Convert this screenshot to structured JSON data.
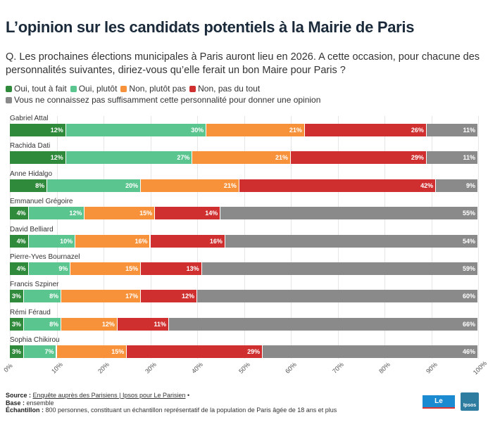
{
  "chart_data": {
    "type": "bar",
    "orientation": "horizontal-stacked",
    "title": "L’opinion sur les candidats potentiels à la Mairie de Paris",
    "subtitle": "Q. Les prochaines élections municipales à Paris auront lieu en 2026. A cette occasion, pour chacune des personnalités suivantes, diriez-vous qu’elle ferait un bon Maire pour Paris ?",
    "categories": [
      "Gabriel Attal",
      "Rachida Dati",
      "Anne Hidalgo",
      "Emmanuel Grégoire",
      "David Belliard",
      "Pierre-Yves Bournazel",
      "Francis Szpiner",
      "Rémi Féraud",
      "Sophia Chikirou"
    ],
    "series": [
      {
        "name": "Oui, tout à fait",
        "color": "#2f8a3b",
        "values": [
          12,
          12,
          8,
          4,
          4,
          4,
          3,
          3,
          3
        ]
      },
      {
        "name": "Oui, plutôt",
        "color": "#5ac58f",
        "values": [
          30,
          27,
          20,
          12,
          10,
          9,
          8,
          8,
          7
        ]
      },
      {
        "name": "Non, plutôt pas",
        "color": "#f8923a",
        "values": [
          21,
          21,
          21,
          15,
          16,
          15,
          17,
          12,
          15
        ]
      },
      {
        "name": "Non, pas du tout",
        "color": "#cf2f2f",
        "values": [
          26,
          29,
          42,
          14,
          16,
          13,
          12,
          11,
          29
        ]
      },
      {
        "name": "Vous ne connaissez pas suffisamment cette personnalité pour donner une opinion",
        "color": "#8a8a8a",
        "values": [
          11,
          11,
          9,
          55,
          54,
          59,
          60,
          66,
          46
        ]
      }
    ],
    "xlim": [
      0,
      100
    ],
    "xticks": [
      "0%",
      "10%",
      "20%",
      "30%",
      "40%",
      "50%",
      "60%",
      "70%",
      "80%",
      "90%",
      "100%"
    ],
    "legend": "top-left",
    "grid": true
  },
  "footer": {
    "source_label": "Source :",
    "source_text": "Enquête auprès des Parisiens | Ipsos pour Le Parisien",
    "source_sep": " •",
    "base_label": "Base :",
    "base_text": " ensemble",
    "sample_label": "Échantillon :",
    "sample_text": " 800 personnes, constituant un échantillon représentatif de la population de Paris âgée de 18 ans et plus"
  },
  "logos": {
    "leparisien": "Le Parisien",
    "ipsos": "Ipsos"
  }
}
